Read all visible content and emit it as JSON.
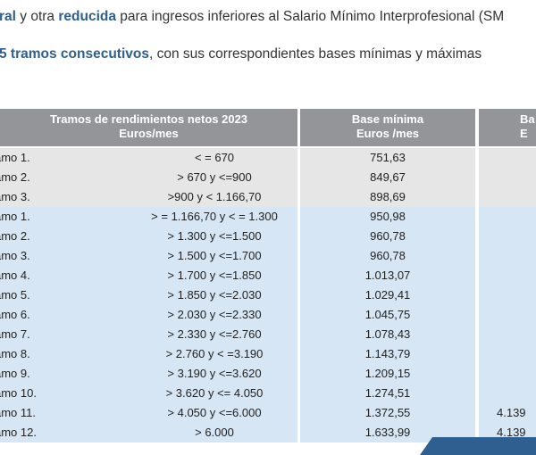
{
  "intro": {
    "line1_part1": "ral",
    "line1_part2": " y otra ",
    "line1_part3": "reducida",
    "line1_part4": " para ingresos inferiores al Salario Mínimo Interprofesional (SM",
    "line2_part1": "5 tramos consecutivos",
    "line2_part2": ", con sus correspondientes bases mínimas y máximas"
  },
  "table": {
    "col1_header_line1": "Tramos de rendimientos netos 2023",
    "col1_header_line2": "Euros/mes",
    "col2_header_line1": "Base mínima",
    "col2_header_line2": "Euros /mes",
    "col3_header_line1": "Ba",
    "col3_header_line2": "E",
    "rows": [
      {
        "name": "amo 1.",
        "range": "< = 670",
        "min": "751,63",
        "max": ""
      },
      {
        "name": "amo 2.",
        "range": "> 670 y <=900",
        "min": "849,67",
        "max": ""
      },
      {
        "name": "amo 3.",
        "range": ">900 y < 1.166,70",
        "min": "898,69",
        "max": ""
      },
      {
        "name": "amo 1.",
        "range": "> = 1.166,70 y < = 1.300",
        "min": "950,98",
        "max": ""
      },
      {
        "name": "amo 2.",
        "range": "> 1.300 y <=1.500",
        "min": "960,78",
        "max": ""
      },
      {
        "name": "amo 3.",
        "range": "> 1.500 y <=1.700",
        "min": "960,78",
        "max": ""
      },
      {
        "name": "amo 4.",
        "range": "> 1.700 y <=1.850",
        "min": "1.013,07",
        "max": ""
      },
      {
        "name": "amo 5.",
        "range": "> 1.850 y <=2.030",
        "min": "1.029,41",
        "max": ""
      },
      {
        "name": "amo 6.",
        "range": "> 2.030 y <=2.330",
        "min": "1.045,75",
        "max": ""
      },
      {
        "name": "amo 7.",
        "range": "> 2.330 y <=2.760",
        "min": "1.078,43",
        "max": ""
      },
      {
        "name": "amo 8.",
        "range": "> 2.760 y < =3.190",
        "min": "1.143,79",
        "max": ""
      },
      {
        "name": "amo 9.",
        "range": "> 3.190 y <=3.620",
        "min": "1.209,15",
        "max": ""
      },
      {
        "name": "amo 10.",
        "range": "> 3.620 y <= 4.050",
        "min": "1.274,51",
        "max": ""
      },
      {
        "name": "amo 11.",
        "range": "> 4.050 y <=6.000",
        "min": "1.372,55",
        "max": "4.139"
      },
      {
        "name": "amo 12.",
        "range": "> 6.000",
        "min": "1.633,99",
        "max": "4.139"
      }
    ]
  }
}
